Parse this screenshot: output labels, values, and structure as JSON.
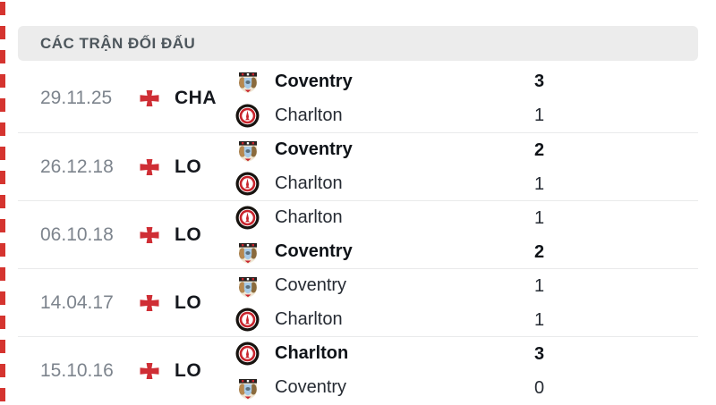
{
  "title_bar": {
    "label": "CÁC TRẬN ĐỐI ĐẤU"
  },
  "colors": {
    "accent_red": "#d0313a",
    "title_bg": "#ececec",
    "title_text": "#4d565c",
    "date_text": "#7d848d",
    "separator": "#e9eaeb"
  },
  "icons": {
    "flag": "england-flag-icon",
    "coventry": "coventry-crest-icon",
    "charlton": "charlton-crest-icon"
  },
  "matches": [
    {
      "date": "29.11.25",
      "competition": "CHA",
      "lines": [
        {
          "team": "Coventry",
          "score": "3",
          "winner": true,
          "logo": "coventry"
        },
        {
          "team": "Charlton",
          "score": "1",
          "winner": false,
          "logo": "charlton"
        }
      ]
    },
    {
      "date": "26.12.18",
      "competition": "LO",
      "lines": [
        {
          "team": "Coventry",
          "score": "2",
          "winner": true,
          "logo": "coventry"
        },
        {
          "team": "Charlton",
          "score": "1",
          "winner": false,
          "logo": "charlton"
        }
      ]
    },
    {
      "date": "06.10.18",
      "competition": "LO",
      "lines": [
        {
          "team": "Charlton",
          "score": "1",
          "winner": false,
          "logo": "charlton"
        },
        {
          "team": "Coventry",
          "score": "2",
          "winner": true,
          "logo": "coventry"
        }
      ]
    },
    {
      "date": "14.04.17",
      "competition": "LO",
      "lines": [
        {
          "team": "Coventry",
          "score": "1",
          "winner": false,
          "logo": "coventry"
        },
        {
          "team": "Charlton",
          "score": "1",
          "winner": false,
          "logo": "charlton"
        }
      ]
    },
    {
      "date": "15.10.16",
      "competition": "LO",
      "lines": [
        {
          "team": "Charlton",
          "score": "3",
          "winner": true,
          "logo": "charlton"
        },
        {
          "team": "Coventry",
          "score": "0",
          "winner": false,
          "logo": "coventry"
        }
      ]
    }
  ]
}
